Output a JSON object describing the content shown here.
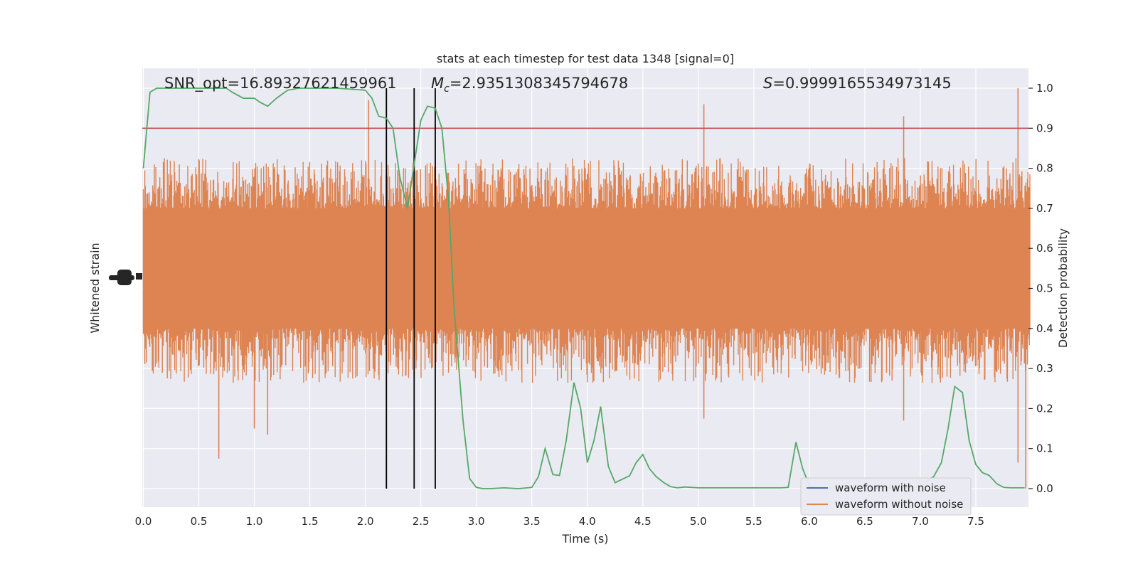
{
  "chart_data": {
    "type": "line",
    "title": "stats at each timestep for test data 1348 [signal=0]",
    "xlabel": "Time (s)",
    "ylabel_left": "Whitened strain",
    "ylabel_right": "Detection probability",
    "xlim": [
      0.0,
      8.0
    ],
    "ylim_right": [
      -0.05,
      1.05
    ],
    "x_ticks": [
      0.0,
      0.5,
      1.0,
      1.5,
      2.0,
      2.5,
      3.0,
      3.5,
      4.0,
      4.5,
      5.0,
      5.5,
      6.0,
      6.5,
      7.0,
      7.5
    ],
    "x_tick_labels": [
      "0.0",
      "0.5",
      "1.0",
      "1.5",
      "2.0",
      "2.5",
      "3.0",
      "3.5",
      "4.0",
      "4.5",
      "5.0",
      "5.5",
      "6.0",
      "6.5",
      "7.0",
      "7.5"
    ],
    "y_right_ticks": [
      0.0,
      0.1,
      0.2,
      0.3,
      0.4,
      0.5,
      0.6,
      0.7,
      0.8,
      0.9,
      1.0
    ],
    "y_right_tick_labels": [
      "0.0",
      "0.1",
      "0.2",
      "0.3",
      "0.4",
      "0.5",
      "0.6",
      "0.7",
      "0.8",
      "0.9",
      "1.0"
    ],
    "grid": true,
    "legend_placement": "lower right",
    "annotations": {
      "snr": "SNR_opt=16.89327621459961",
      "mc_symbol": "M",
      "mc_subscript": "c",
      "mc_value": "=2.9351308345794678",
      "s_symbol": "S",
      "s_value": "=0.9999165534973145"
    },
    "threshold": {
      "y": 0.9,
      "color": "#c44e52"
    },
    "vertical_lines": [
      2.19,
      2.44,
      2.63
    ],
    "noise_envelope": {
      "core_low": 0.4,
      "core_high": 0.7,
      "typical_spike_low": 0.27,
      "typical_spike_high": 0.82,
      "peak_spikes": [
        {
          "x": 0.68,
          "y": 0.075
        },
        {
          "x": 1.0,
          "y": 0.15
        },
        {
          "x": 1.12,
          "y": 0.135
        },
        {
          "x": 2.03,
          "y": 0.97
        },
        {
          "x": 5.05,
          "y": 0.96
        },
        {
          "x": 5.05,
          "y": 0.175
        },
        {
          "x": 6.85,
          "y": 0.93
        },
        {
          "x": 6.85,
          "y": 0.17
        },
        {
          "x": 7.88,
          "y": 1.0
        },
        {
          "x": 7.88,
          "y": 0.065
        },
        {
          "x": 7.95,
          "y": 0.0
        }
      ]
    },
    "series": [
      {
        "name": "waveform with noise",
        "color": "#4c72b0",
        "x": [],
        "y": []
      },
      {
        "name": "waveform without noise",
        "color": "#dd8452"
      },
      {
        "color": "#55a868",
        "x": [
          0.0,
          0.06,
          0.12,
          0.25,
          0.5,
          0.75,
          0.8,
          0.9,
          1.0,
          1.05,
          1.12,
          1.2,
          1.3,
          1.4,
          1.5,
          1.75,
          2.0,
          2.06,
          2.12,
          2.19,
          2.25,
          2.31,
          2.38,
          2.44,
          2.5,
          2.56,
          2.63,
          2.69,
          2.75,
          2.8,
          2.88,
          2.94,
          3.0,
          3.06,
          3.12,
          3.25,
          3.38,
          3.5,
          3.56,
          3.62,
          3.69,
          3.75,
          3.81,
          3.88,
          3.94,
          4.0,
          4.06,
          4.12,
          4.19,
          4.25,
          4.38,
          4.44,
          4.5,
          4.56,
          4.62,
          4.69,
          4.75,
          4.81,
          4.88,
          5.0,
          5.25,
          5.5,
          5.75,
          5.81,
          5.88,
          5.94,
          6.0,
          6.06,
          6.25,
          6.5,
          6.75,
          7.0,
          7.06,
          7.12,
          7.19,
          7.25,
          7.31,
          7.38,
          7.44,
          7.5,
          7.56,
          7.62,
          7.69,
          7.75,
          7.81,
          7.94
        ],
        "y": [
          0.8,
          0.99,
          1.0,
          1.0,
          1.0,
          1.0,
          0.99,
          0.975,
          0.975,
          0.965,
          0.955,
          0.975,
          0.995,
          1.0,
          1.0,
          1.0,
          0.995,
          0.975,
          0.93,
          0.925,
          0.9,
          0.78,
          0.7,
          0.81,
          0.92,
          0.955,
          0.95,
          0.9,
          0.72,
          0.45,
          0.17,
          0.025,
          0.003,
          0.0,
          0.0,
          0.002,
          0.0,
          0.003,
          0.03,
          0.1,
          0.035,
          0.033,
          0.12,
          0.265,
          0.2,
          0.065,
          0.12,
          0.205,
          0.055,
          0.015,
          0.032,
          0.065,
          0.085,
          0.05,
          0.03,
          0.015,
          0.005,
          0.002,
          0.004,
          0.002,
          0.002,
          0.002,
          0.002,
          0.003,
          0.116,
          0.05,
          0.008,
          0.003,
          0.002,
          0.002,
          0.002,
          0.005,
          0.018,
          0.03,
          0.065,
          0.15,
          0.255,
          0.24,
          0.12,
          0.06,
          0.04,
          0.033,
          0.012,
          0.003,
          0.002,
          0.002
        ]
      }
    ]
  }
}
